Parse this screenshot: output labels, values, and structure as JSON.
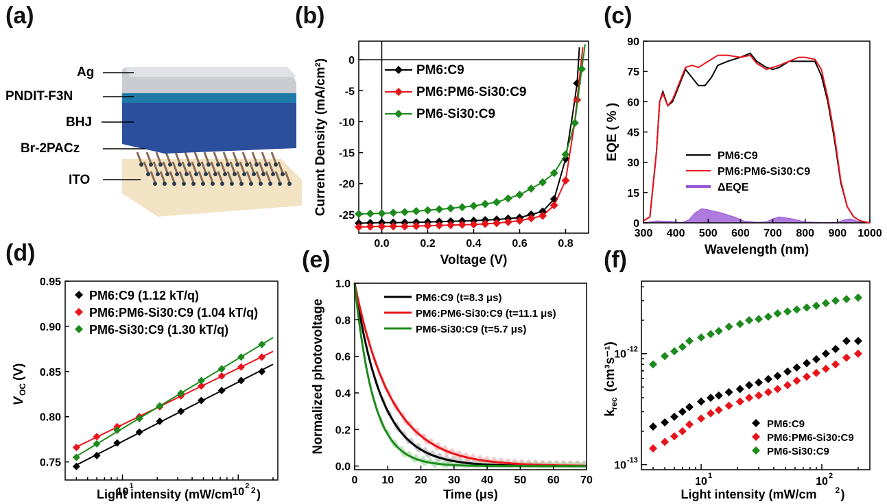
{
  "panels": {
    "a": "(a)",
    "b": "(b)",
    "c": "(c)",
    "d": "(d)",
    "e": "(e)",
    "f": "(f)"
  },
  "device": {
    "layers": [
      "Ag",
      "PNDIT-F3N",
      "BHJ",
      "Br-2PACz",
      "ITO"
    ],
    "colors": {
      "Ag": "#c9ccd1",
      "PNDIT-F3N": "#1f7aa8",
      "BHJ": "#2b4f9c",
      "ITO": "#f2e3c4",
      "molecule": "#8a6a52"
    }
  },
  "colors": {
    "PM6:C9": "#000000",
    "PM6:PM6-Si30:C9": "#e8141b",
    "PM6-Si30:C9": "#1c8a1c",
    "dEQE": "#9b59d6"
  },
  "chart_data": [
    {
      "panel": "b",
      "type": "line",
      "xlabel": "Voltage (V)",
      "ylabel": "Current Density (mA/cm²)",
      "xlim": [
        -0.1,
        0.9
      ],
      "ylim": [
        -28,
        3
      ],
      "xticks": [
        "0.0",
        "0.2",
        "0.4",
        "0.6",
        "0.8"
      ],
      "yticks": [
        "0",
        "-5",
        "-10",
        "-15",
        "-20",
        "-25"
      ],
      "legend_position": "top-left",
      "series": [
        {
          "name": "PM6:C9",
          "x": [
            -0.1,
            0,
            0.1,
            0.2,
            0.3,
            0.4,
            0.5,
            0.6,
            0.7,
            0.75,
            0.8,
            0.83,
            0.85,
            0.86
          ],
          "y": [
            -26.4,
            -26.3,
            -26.3,
            -26.2,
            -26.1,
            -26.0,
            -25.8,
            -25.5,
            -24.5,
            -22.5,
            -16,
            -9,
            -3.8,
            2
          ],
          "marker_x": [
            -0.1,
            -0.05,
            0,
            0.05,
            0.1,
            0.15,
            0.2,
            0.25,
            0.3,
            0.35,
            0.4,
            0.45,
            0.5,
            0.55,
            0.6,
            0.65,
            0.7,
            0.75,
            0.8,
            0.85
          ]
        },
        {
          "name": "PM6:PM6-Si30:C9",
          "x": [
            -0.1,
            0,
            0.1,
            0.2,
            0.3,
            0.4,
            0.5,
            0.6,
            0.7,
            0.75,
            0.8,
            0.84,
            0.86,
            0.875
          ],
          "y": [
            -27.0,
            -26.9,
            -26.9,
            -26.8,
            -26.7,
            -26.6,
            -26.4,
            -26.0,
            -25.2,
            -23.5,
            -19.5,
            -10,
            -3,
            2
          ],
          "marker_x": [
            -0.1,
            -0.05,
            0,
            0.05,
            0.1,
            0.15,
            0.2,
            0.25,
            0.3,
            0.35,
            0.4,
            0.45,
            0.5,
            0.55,
            0.6,
            0.65,
            0.7,
            0.75,
            0.8,
            0.85
          ]
        },
        {
          "name": "PM6-Si30:C9",
          "x": [
            -0.1,
            0,
            0.1,
            0.2,
            0.3,
            0.4,
            0.5,
            0.6,
            0.7,
            0.75,
            0.8,
            0.84,
            0.87,
            0.885
          ],
          "y": [
            -24.9,
            -24.8,
            -24.6,
            -24.3,
            -24.0,
            -23.6,
            -23.0,
            -21.8,
            -19.8,
            -18.3,
            -15.3,
            -10.2,
            -1.5,
            2.5
          ],
          "marker_x": [
            -0.1,
            -0.05,
            0,
            0.05,
            0.1,
            0.15,
            0.2,
            0.25,
            0.3,
            0.35,
            0.4,
            0.45,
            0.5,
            0.55,
            0.6,
            0.65,
            0.7,
            0.75,
            0.8,
            0.84,
            0.87
          ]
        }
      ]
    },
    {
      "panel": "c",
      "type": "line",
      "xlabel": "Wavelength (nm)",
      "ylabel": "EQE ( % )",
      "xlim": [
        300,
        1000
      ],
      "ylim": [
        0,
        90
      ],
      "xticks": [
        "300",
        "400",
        "500",
        "600",
        "700",
        "800",
        "900",
        "1000"
      ],
      "yticks": [
        "0",
        "15",
        "30",
        "45",
        "60",
        "75",
        "90"
      ],
      "legend_position": "bottom-center",
      "series": [
        {
          "name": "PM6:C9",
          "x": [
            300,
            320,
            340,
            350,
            360,
            375,
            390,
            410,
            430,
            450,
            470,
            490,
            510,
            530,
            560,
            600,
            630,
            650,
            680,
            700,
            720,
            750,
            780,
            800,
            830,
            850,
            870,
            890,
            910,
            930,
            950,
            970,
            1000
          ],
          "y": [
            1,
            3,
            35,
            60,
            65,
            58,
            60,
            68,
            76,
            72,
            68,
            68,
            72,
            78,
            80,
            82,
            84,
            80,
            77,
            76,
            77,
            80,
            80,
            80,
            80,
            73,
            60,
            42,
            20,
            8,
            3,
            1,
            0
          ]
        },
        {
          "name": "PM6:PM6-Si30:C9",
          "x": [
            300,
            320,
            340,
            350,
            360,
            375,
            390,
            410,
            430,
            450,
            470,
            490,
            510,
            530,
            560,
            600,
            630,
            650,
            680,
            700,
            720,
            750,
            780,
            800,
            830,
            850,
            870,
            890,
            910,
            930,
            950,
            970,
            1000
          ],
          "y": [
            1,
            3,
            35,
            60,
            64,
            58,
            61,
            69,
            77,
            78,
            77,
            79,
            81,
            83,
            83,
            82,
            83,
            79,
            76,
            77,
            78,
            80,
            82,
            82,
            81,
            76,
            62,
            44,
            21,
            8,
            3,
            1,
            0
          ]
        },
        {
          "name": "ΔEQE",
          "type": "area",
          "x": [
            300,
            340,
            380,
            420,
            440,
            460,
            480,
            500,
            540,
            580,
            610,
            650,
            680,
            700,
            720,
            760,
            800,
            850,
            900,
            920,
            940,
            960,
            980,
            1000
          ],
          "y": [
            0,
            1,
            0.8,
            0.2,
            1.5,
            5,
            7,
            6.5,
            5,
            3,
            1,
            0.3,
            0.5,
            2,
            3,
            2,
            0.5,
            0.2,
            0.3,
            1.5,
            2,
            1,
            0.3,
            0
          ]
        }
      ]
    },
    {
      "panel": "d",
      "type": "scatter",
      "xlabel": "Light intensity (mW/cm²)",
      "ylabel": "VOC (V)",
      "xscale": "log",
      "xlim": [
        3.2,
        220
      ],
      "ylim": [
        0.73,
        0.95
      ],
      "xticks": [
        "10¹",
        "10²"
      ],
      "yticks": [
        "0.75",
        "0.80",
        "0.85",
        "0.90",
        "0.95"
      ],
      "legend_position": "top-left",
      "series": [
        {
          "name": "PM6:C9 (1.12 kT/q)",
          "x": [
            4,
            6,
            9,
            14,
            21,
            32,
            48,
            72,
            106,
            160
          ],
          "y": [
            0.745,
            0.757,
            0.771,
            0.783,
            0.795,
            0.806,
            0.818,
            0.829,
            0.84,
            0.85
          ]
        },
        {
          "name": "PM6:PM6-Si30:C9 (1.04 kT/q)",
          "x": [
            4,
            6,
            9,
            14,
            21,
            32,
            48,
            72,
            106,
            160
          ],
          "y": [
            0.766,
            0.778,
            0.789,
            0.8,
            0.811,
            0.823,
            0.834,
            0.845,
            0.855,
            0.866
          ]
        },
        {
          "name": "PM6-Si30:C9 (1.30 kT/q)",
          "x": [
            4,
            6,
            9,
            14,
            21,
            32,
            48,
            72,
            106,
            160
          ],
          "y": [
            0.755,
            0.77,
            0.785,
            0.798,
            0.812,
            0.826,
            0.84,
            0.853,
            0.866,
            0.88
          ]
        }
      ]
    },
    {
      "panel": "e",
      "type": "line",
      "xlabel": "Time (μs)",
      "ylabel": "Normalized photovoltage",
      "xlim": [
        0,
        70
      ],
      "ylim": [
        -0.02,
        1.0
      ],
      "xticks": [
        "0",
        "10",
        "20",
        "30",
        "40",
        "50",
        "60",
        "70"
      ],
      "yticks": [
        "0.0",
        "0.2",
        "0.4",
        "0.6",
        "0.8",
        "1.0"
      ],
      "legend_position": "top-center",
      "series": [
        {
          "name": "PM6:C9 (t=8.3 μs)",
          "tau": 8.3
        },
        {
          "name": "PM6:PM6-Si30:C9 (t=11.1 μs)",
          "tau": 11.1
        },
        {
          "name": "PM6-Si30:C9 (t=5.7 μs)",
          "tau": 5.7
        }
      ]
    },
    {
      "panel": "f",
      "type": "scatter",
      "xlabel": "Light intensity (mW/cm²)",
      "ylabel": "krec (cm³s⁻¹)",
      "xscale": "log",
      "yscale": "log",
      "xlim": [
        3.2,
        250
      ],
      "ylim": [
        9e-14,
        4.5e-12
      ],
      "xticks": [
        "10¹",
        "10²"
      ],
      "yticks": [
        "10⁻¹³",
        "10⁻¹²"
      ],
      "legend_position": "bottom-right",
      "series": [
        {
          "name": "PM6:C9",
          "x": [
            4,
            5,
            6,
            7,
            8,
            10,
            12,
            14,
            17,
            21,
            25,
            30,
            36,
            43,
            52,
            62,
            75,
            90,
            108,
            130,
            160,
            200
          ],
          "y": [
            2.2e-13,
            2.4e-13,
            2.7e-13,
            3e-13,
            3.3e-13,
            3.7e-13,
            4e-13,
            4.2e-13,
            4.5e-13,
            4.8e-13,
            5.2e-13,
            5.5e-13,
            5.9e-13,
            6.3e-13,
            6.9e-13,
            7.5e-13,
            8.2e-13,
            8.9e-13,
            1e-12,
            1.1e-12,
            1.3e-12,
            1.3e-12
          ]
        },
        {
          "name": "PM6:PM6-Si30:C9",
          "x": [
            4,
            5,
            6,
            7,
            8,
            10,
            12,
            14,
            17,
            21,
            25,
            30,
            36,
            43,
            52,
            62,
            75,
            90,
            108,
            130,
            160,
            200
          ],
          "y": [
            1.4e-13,
            1.6e-13,
            1.8e-13,
            2e-13,
            2.3e-13,
            2.6e-13,
            2.9e-13,
            3.1e-13,
            3.4e-13,
            3.7e-13,
            4e-13,
            4.2e-13,
            4.5e-13,
            4.8e-13,
            5.2e-13,
            5.7e-13,
            6.2e-13,
            6.7e-13,
            7.3e-13,
            8e-13,
            9.2e-13,
            1e-12
          ]
        },
        {
          "name": "PM6-Si30:C9",
          "x": [
            4,
            5,
            6,
            7,
            8,
            10,
            12,
            14,
            17,
            21,
            25,
            30,
            36,
            43,
            52,
            62,
            75,
            90,
            108,
            130,
            160,
            200
          ],
          "y": [
            8e-13,
            9.5e-13,
            1.05e-12,
            1.15e-12,
            1.3e-12,
            1.4e-12,
            1.5e-12,
            1.6e-12,
            1.75e-12,
            1.85e-12,
            2e-12,
            2.05e-12,
            2.15e-12,
            2.3e-12,
            2.4e-12,
            2.5e-12,
            2.6e-12,
            2.7e-12,
            2.85e-12,
            3e-12,
            3.1e-12,
            3.2e-12
          ]
        }
      ]
    }
  ]
}
